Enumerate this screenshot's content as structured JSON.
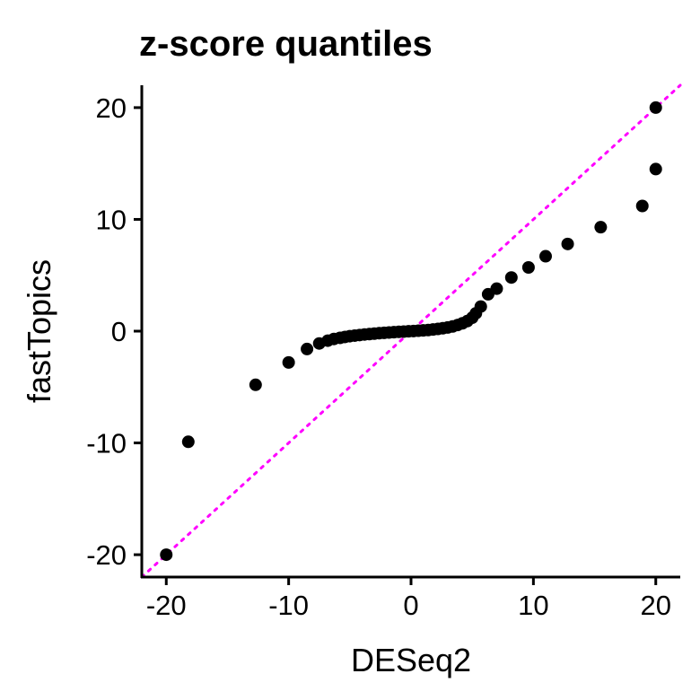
{
  "chart_data": {
    "type": "scatter",
    "title": "z-score quantiles",
    "xlabel": "DESeq2",
    "ylabel": "fastTopics",
    "xlim": [
      -22,
      22
    ],
    "ylim": [
      -22,
      22
    ],
    "xticks": [
      -20,
      -10,
      0,
      10,
      20
    ],
    "yticks": [
      -20,
      -10,
      0,
      10,
      20
    ],
    "grid": false,
    "reference_line": {
      "slope": 1,
      "intercept": 0,
      "style": "dotted",
      "color": "#ff00ff"
    },
    "point_color": "#000000",
    "points": [
      {
        "x": -20.0,
        "y": -20.0
      },
      {
        "x": -18.2,
        "y": -9.9
      },
      {
        "x": -12.7,
        "y": -4.8
      },
      {
        "x": -10.0,
        "y": -2.8
      },
      {
        "x": -8.5,
        "y": -1.6
      },
      {
        "x": -7.5,
        "y": -1.1
      },
      {
        "x": -6.8,
        "y": -0.85
      },
      {
        "x": -6.3,
        "y": -0.7
      },
      {
        "x": -5.8,
        "y": -0.6
      },
      {
        "x": -5.4,
        "y": -0.52
      },
      {
        "x": -5.0,
        "y": -0.45
      },
      {
        "x": -4.6,
        "y": -0.4
      },
      {
        "x": -4.2,
        "y": -0.35
      },
      {
        "x": -3.8,
        "y": -0.3
      },
      {
        "x": -3.4,
        "y": -0.26
      },
      {
        "x": -3.0,
        "y": -0.22
      },
      {
        "x": -2.6,
        "y": -0.18
      },
      {
        "x": -2.2,
        "y": -0.15
      },
      {
        "x": -1.8,
        "y": -0.12
      },
      {
        "x": -1.4,
        "y": -0.09
      },
      {
        "x": -1.0,
        "y": -0.06
      },
      {
        "x": -0.6,
        "y": -0.04
      },
      {
        "x": -0.2,
        "y": -0.01
      },
      {
        "x": 0.2,
        "y": 0.01
      },
      {
        "x": 0.6,
        "y": 0.04
      },
      {
        "x": 1.0,
        "y": 0.07
      },
      {
        "x": 1.4,
        "y": 0.1
      },
      {
        "x": 1.8,
        "y": 0.15
      },
      {
        "x": 2.2,
        "y": 0.2
      },
      {
        "x": 2.6,
        "y": 0.26
      },
      {
        "x": 3.0,
        "y": 0.33
      },
      {
        "x": 3.4,
        "y": 0.42
      },
      {
        "x": 3.8,
        "y": 0.55
      },
      {
        "x": 4.2,
        "y": 0.7
      },
      {
        "x": 4.6,
        "y": 0.9
      },
      {
        "x": 5.0,
        "y": 1.2
      },
      {
        "x": 5.3,
        "y": 1.6
      },
      {
        "x": 5.7,
        "y": 2.2
      },
      {
        "x": 6.3,
        "y": 3.3
      },
      {
        "x": 7.0,
        "y": 3.8
      },
      {
        "x": 8.2,
        "y": 4.8
      },
      {
        "x": 9.6,
        "y": 5.7
      },
      {
        "x": 11.0,
        "y": 6.7
      },
      {
        "x": 12.8,
        "y": 7.8
      },
      {
        "x": 15.5,
        "y": 9.3
      },
      {
        "x": 18.9,
        "y": 11.2
      },
      {
        "x": 20.0,
        "y": 14.5
      },
      {
        "x": 20.0,
        "y": 20.0
      }
    ]
  }
}
